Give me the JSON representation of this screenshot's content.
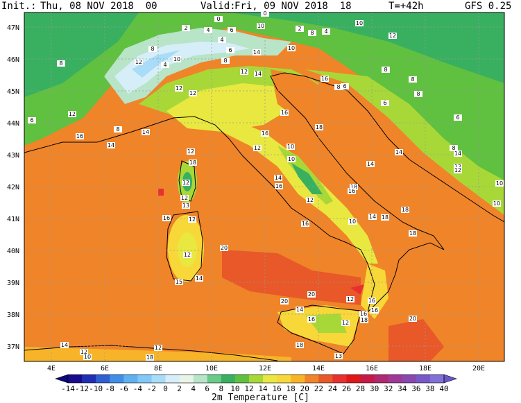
{
  "header": {
    "init_label": "Init.:",
    "init_value": "Thu, 08 NOV 2018  00",
    "valid_label": "Valid:",
    "valid_value": "Fri, 09 NOV 2018  18",
    "lead": "T=+42h",
    "model": "GFS 0.25"
  },
  "map": {
    "lat_labels": [
      "47N",
      "46N",
      "45N",
      "44N",
      "43N",
      "42N",
      "41N",
      "40N",
      "39N",
      "38N",
      "37N"
    ],
    "lon_labels": [
      "4E",
      "6E",
      "8E",
      "10E",
      "12E",
      "14E",
      "16E",
      "18E",
      "20E"
    ],
    "value_labels": [
      "0",
      "2",
      "4",
      "6",
      "4",
      "10",
      "6",
      "8",
      "12",
      "4",
      "0",
      "2",
      "4",
      "10",
      "12",
      "8",
      "10",
      "14",
      "10",
      "8",
      "8",
      "12",
      "14",
      "16",
      "8",
      "6",
      "8",
      "12",
      "12",
      "6",
      "16",
      "12",
      "18",
      "16",
      "8",
      "6",
      "12",
      "10",
      "14",
      "12",
      "16",
      "14",
      "18",
      "10",
      "16",
      "14",
      "14",
      "14",
      "12",
      "18",
      "16",
      "12",
      "13",
      "12",
      "16",
      "10",
      "14",
      "12",
      "18",
      "18",
      "12",
      "16",
      "15",
      "14",
      "18",
      "20",
      "20",
      "20",
      "14",
      "16",
      "12",
      "12",
      "20",
      "18",
      "16",
      "16",
      "16",
      "18",
      "13",
      "14",
      "12",
      "18",
      "12",
      "10",
      "14",
      "8",
      "6",
      "10",
      "10",
      "12",
      "12",
      "8",
      "8"
    ]
  },
  "colorbar": {
    "ticks": [
      "-14",
      "-12",
      "-10",
      "-8",
      "-6",
      "-4",
      "-2",
      "0",
      "2",
      "4",
      "6",
      "8",
      "10",
      "12",
      "14",
      "16",
      "18",
      "20",
      "22",
      "24",
      "26",
      "28",
      "30",
      "32",
      "34",
      "36",
      "38",
      "40"
    ],
    "colors": [
      "#1a0a8c",
      "#1f2fb4",
      "#2f5fd0",
      "#3f8fe8",
      "#5fb0f0",
      "#7fc8f8",
      "#a8dcf8",
      "#d6eef8",
      "#e8f4e8",
      "#b8e4c8",
      "#68cc88",
      "#38b060",
      "#60c040",
      "#a8d838",
      "#e8e840",
      "#f8d838",
      "#f8b428",
      "#f08428",
      "#e85828",
      "#e83030",
      "#e01818",
      "#c81848",
      "#b02870",
      "#a03898",
      "#8848b0",
      "#7858c8",
      "#8070d8"
    ],
    "title": "2m Temperature [C]"
  }
}
